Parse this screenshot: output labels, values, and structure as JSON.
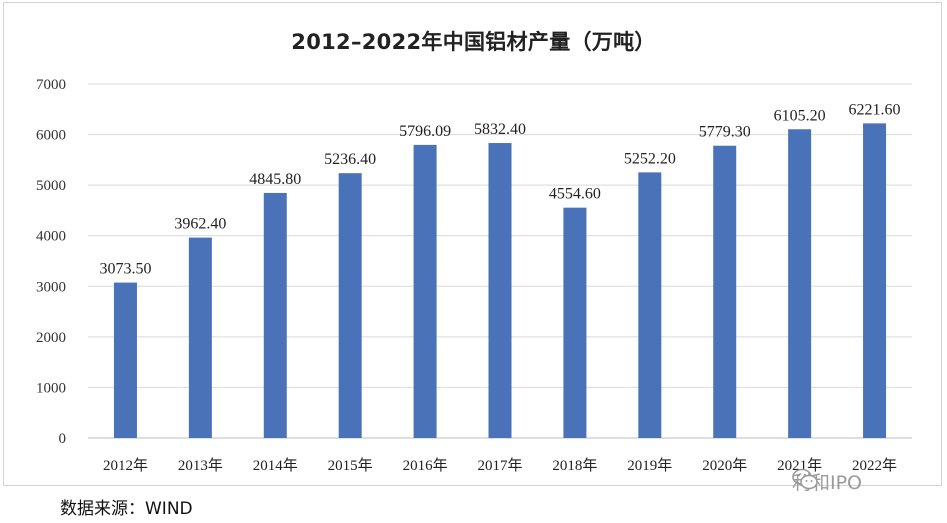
{
  "chart_data": {
    "type": "bar",
    "title": "2012–2022年中国铝材产量（万吨）",
    "categories": [
      "2012年",
      "2013年",
      "2014年",
      "2015年",
      "2016年",
      "2017年",
      "2018年",
      "2019年",
      "2020年",
      "2021年",
      "2022年"
    ],
    "values": [
      3073.5,
      3962.4,
      4845.8,
      5236.4,
      5796.09,
      5832.4,
      4554.6,
      5252.2,
      5779.3,
      6105.2,
      6221.6
    ],
    "data_labels": [
      "3073.50",
      "3962.40",
      "4845.80",
      "5236.40",
      "5796.09",
      "5832.40",
      "4554.60",
      "5252.20",
      "5779.30",
      "6105.20",
      "6221.60"
    ],
    "ylim": [
      0,
      7000
    ],
    "yticks": [
      0,
      1000,
      2000,
      3000,
      4000,
      5000,
      6000,
      7000
    ],
    "grid": true,
    "legend": "none",
    "bar_color": "#4a72b8"
  },
  "source_note": "数据来源：WIND",
  "watermark": {
    "text": "利和IPO",
    "icon": "wechat-icon"
  }
}
